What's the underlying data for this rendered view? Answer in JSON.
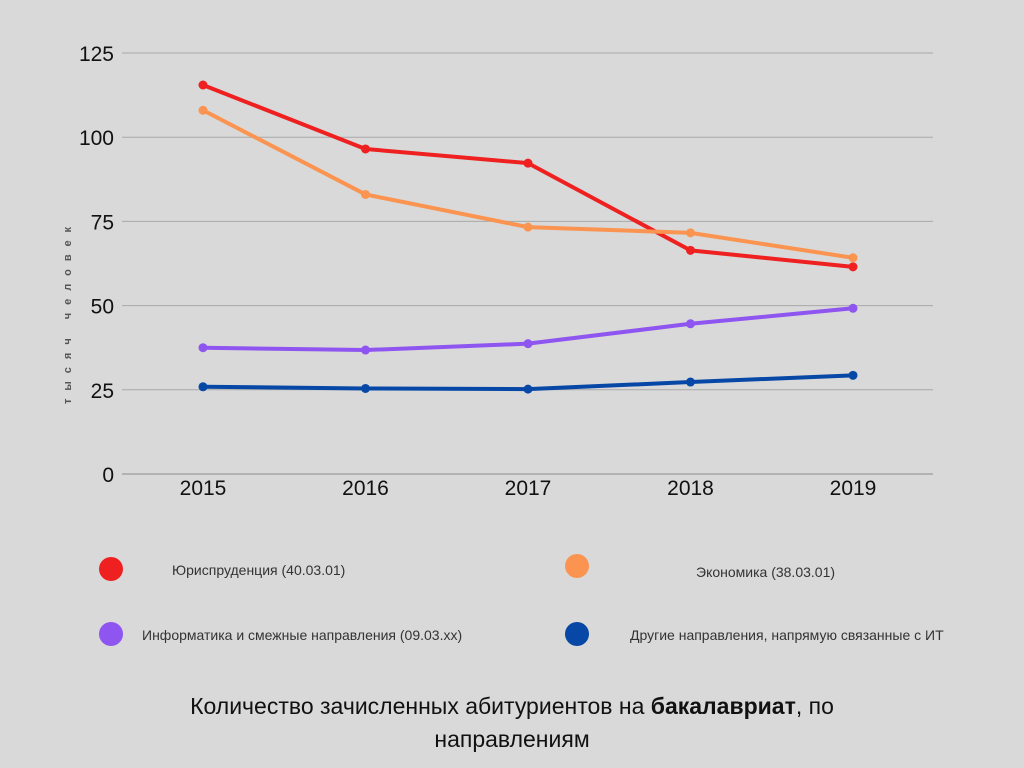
{
  "chart_data": {
    "type": "line",
    "title": "",
    "ylabel": "тысяч человек",
    "xlabel": "",
    "ylim": [
      0,
      125
    ],
    "yticks": [
      0,
      25,
      50,
      75,
      100,
      125
    ],
    "categories": [
      "2015",
      "2016",
      "2017",
      "2018",
      "2019"
    ],
    "grid": true,
    "legend_position": "bottom",
    "series": [
      {
        "name": "Юриспруденция (40.03.01)",
        "color": "#ee2020",
        "values": [
          115.5,
          96.5,
          92.3,
          66.4,
          61.5
        ]
      },
      {
        "name": "Экономика (38.03.01)",
        "color": "#fa9450",
        "values": [
          108.0,
          83.0,
          73.3,
          71.6,
          64.2
        ]
      },
      {
        "name": "Информатика и смежные направления (09.03.хх)",
        "color": "#8e55f0",
        "values": [
          37.5,
          36.8,
          38.7,
          44.6,
          49.2
        ]
      },
      {
        "name": "Другие направления, напрямую связанные с ИТ",
        "color": "#0747a6",
        "values": [
          25.9,
          25.4,
          25.2,
          27.3,
          29.3
        ]
      }
    ]
  },
  "caption": {
    "text_before": "Количество зачисленных абитуриентов на ",
    "text_bold": "бакалавриат",
    "text_after": ", по направлениям"
  }
}
